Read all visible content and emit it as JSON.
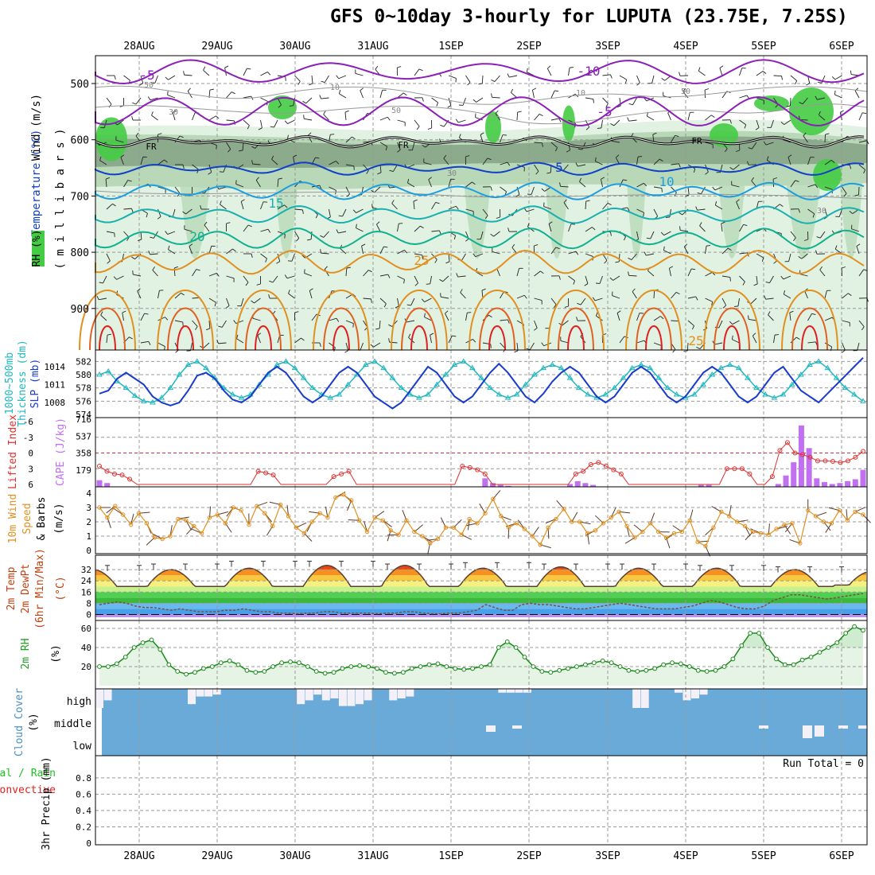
{
  "title": "GFS 0~10day 3-hourly for LUPUTA (23.75E, 7.25S)",
  "days": [
    "28AUG",
    "29AUG",
    "30AUG",
    "31AUG",
    "1SEP",
    "2SEP",
    "3SEP",
    "4SEP",
    "5SEP",
    "6SEP"
  ],
  "colors": {
    "purple": "#8b1fb8",
    "blue": "#1040c8",
    "lightblue": "#1e9ee0",
    "teal": "#18b0b0",
    "green": "#10b090",
    "orange": "#e09020",
    "dorange": "#e06020",
    "red": "#e02020",
    "rh_light": "#e2f2e2",
    "rh_mid": "#b8d8b8",
    "rh_dark": "#8caa8c",
    "rh_bright": "#44cc44",
    "cape": "#c070f0",
    "li": "#e03030",
    "slp": "#1a3ccc",
    "thick": "#20b8c0",
    "wind10": "#e09020",
    "cloud": "#6aaad8",
    "cloud_white": "#f4f0f8"
  },
  "panels": {
    "upper": {
      "ylabel_wind": "Wind (m/s)",
      "ylabel_temp": "Temperature (°C)",
      "ylabel_rh": "RH (%)",
      "ylabel_mb": "( m i l l i b a r s )",
      "pressure_ticks": [
        "500",
        "600",
        "700",
        "800",
        "900"
      ],
      "temp_labels": [
        "-5",
        "-10",
        "-5",
        "FR",
        "FR",
        "FR",
        "5",
        "10",
        "15",
        "20",
        "25",
        "25"
      ],
      "rh_labels": [
        "50",
        "30",
        "10",
        "50",
        "10",
        "30",
        "50",
        "30"
      ]
    },
    "slp": {
      "ylabel_thick": "Thickness (dm)",
      "ylabel_1000": "1000~500mb",
      "ylabel_slp": "SLP (mb)",
      "left_ticks": [
        "582",
        "580",
        "578",
        "576",
        "574"
      ],
      "right_ticks": [
        "1014",
        "1011",
        "1008"
      ]
    },
    "cape": {
      "ylabel_li": "Lifted Index",
      "ylabel_cape": "CAPE (J/kg)",
      "left_ticks": [
        "-6",
        "-3",
        "0",
        "3",
        "6"
      ],
      "right_ticks": [
        "716",
        "537",
        "358",
        "179"
      ]
    },
    "wind10": {
      "ylabel_a": "10m Wind",
      "ylabel_b": "Speed",
      "ylabel_c": "& Barbs",
      "ylabel_unit": "(m/s)",
      "ticks": [
        "4",
        "3",
        "2",
        "1",
        "0"
      ]
    },
    "temp2m": {
      "ylabel_a": "2m Temp",
      "ylabel_b": "2m DewPt",
      "ylabel_c": "(6hr Min/Max)",
      "ylabel_unit": "(°C)",
      "ticks": [
        "32",
        "24",
        "16",
        "8",
        "0"
      ]
    },
    "rh2m": {
      "ylabel_a": "2m RH",
      "ylabel_unit": "(%)",
      "ticks": [
        "60",
        "40",
        "20"
      ]
    },
    "cloud": {
      "ylabel_a": "Cloud Cover",
      "ylabel_unit": "(%)",
      "levels": [
        "high",
        "middle",
        "low"
      ]
    },
    "precip": {
      "ylabel_a": "Total / Rain",
      "ylabel_b": "Convective",
      "ylabel_c": "3hr Precip (mm)",
      "ticks": [
        "0.8",
        "0.6",
        "0.4",
        "0.2",
        "0"
      ],
      "run_total": "Run Total = 0"
    }
  },
  "chart_data": [
    {
      "type": "line",
      "panel": "1000-500mb thickness",
      "ylabel": "Thickness (dm)",
      "ylim": [
        574,
        583
      ],
      "values": [
        580,
        580.5,
        579,
        578,
        576.8,
        576,
        575.8,
        576.5,
        578,
        580,
        581.5,
        582,
        581,
        579.5,
        578,
        577,
        576.5,
        577,
        578.5,
        580,
        581.5,
        582,
        581,
        579.5,
        578,
        577,
        576.5,
        577,
        578.5,
        580,
        581.5,
        582,
        581,
        579.5,
        578,
        577,
        576.5,
        577,
        578.5,
        580,
        581.5,
        582,
        581,
        579.5,
        578,
        577,
        576.5,
        577,
        578.5,
        580,
        581,
        581.5,
        581,
        579.5,
        578,
        577,
        576.5,
        577,
        578,
        579.5,
        581,
        581.5,
        581,
        579.5,
        578,
        577,
        576.5,
        577,
        578.5,
        580,
        581,
        581.5,
        581,
        579.5,
        578,
        577,
        576.5,
        577,
        578.5,
        580,
        581.5,
        582,
        581,
        579.5,
        578,
        577,
        576
      ]
    },
    {
      "type": "line",
      "panel": "SLP",
      "ylabel": "SLP (mb)",
      "ylim": [
        1006,
        1016
      ],
      "values": [
        1009.5,
        1010,
        1012,
        1013,
        1012,
        1011,
        1009,
        1008,
        1007.5,
        1008,
        1010,
        1012.5,
        1013,
        1012,
        1010,
        1008.5,
        1008,
        1009,
        1011,
        1013,
        1014,
        1013,
        1011,
        1009,
        1008,
        1009,
        1011,
        1013,
        1014,
        1013,
        1011,
        1009,
        1008,
        1007,
        1008,
        1010,
        1012,
        1014,
        1013,
        1011,
        1009,
        1008,
        1009,
        1011,
        1013,
        1014.5,
        1013,
        1011,
        1009,
        1008,
        1009.5,
        1011.5,
        1013,
        1014,
        1013,
        1011,
        1009,
        1008,
        1009,
        1011,
        1013,
        1014,
        1013,
        1011,
        1009,
        1008,
        1009,
        1011,
        1013,
        1014,
        1013,
        1011,
        1009,
        1008,
        1009,
        1011,
        1013,
        1014,
        1012,
        1010,
        1009,
        1008,
        1009.5,
        1011,
        1012.5,
        1014,
        1015.5
      ]
    },
    {
      "type": "bar",
      "panel": "CAPE",
      "ylabel": "CAPE (J/kg)",
      "ylim": [
        0,
        716
      ],
      "values": [
        70,
        40,
        0,
        0,
        0,
        0,
        0,
        0,
        0,
        0,
        0,
        0,
        0,
        0,
        0,
        0,
        0,
        0,
        0,
        0,
        0,
        0,
        0,
        0,
        0,
        0,
        0,
        0,
        0,
        0,
        0,
        0,
        0,
        0,
        0,
        0,
        0,
        0,
        0,
        0,
        0,
        0,
        0,
        0,
        0,
        0,
        0,
        0,
        0,
        0,
        90,
        40,
        20,
        10,
        0,
        0,
        0,
        0,
        0,
        0,
        0,
        30,
        60,
        40,
        20,
        0,
        0,
        0,
        0,
        0,
        0,
        0,
        0,
        0,
        0,
        0,
        0,
        0,
        20,
        20,
        0,
        0,
        0,
        0,
        0,
        0,
        0,
        0,
        30,
        120,
        260,
        650,
        410,
        90,
        50,
        30,
        40,
        60,
        80,
        180
      ]
    },
    {
      "type": "line",
      "panel": "Lifted Index",
      "ylabel": "Lifted Index",
      "ylim": [
        6,
        -6
      ],
      "values": [
        2.5,
        3.5,
        4,
        4.2,
        5,
        6,
        6,
        6,
        6,
        6,
        6,
        6,
        6,
        6,
        6,
        6,
        6,
        6,
        6,
        6,
        6,
        3.5,
        3.8,
        4.2,
        6,
        6,
        6,
        6,
        6,
        6,
        6,
        4.5,
        4,
        3.5,
        6,
        6,
        6,
        6,
        6,
        6,
        6,
        6,
        6,
        6,
        6,
        6,
        6,
        6,
        2.5,
        2.8,
        3.2,
        4,
        6,
        6,
        6,
        6,
        6,
        6,
        6,
        6,
        6,
        6,
        6,
        4,
        3.5,
        2.2,
        1.8,
        2.5,
        3.2,
        4,
        6,
        6,
        6,
        6,
        6,
        6,
        6,
        6,
        6,
        6,
        6,
        6,
        6,
        3,
        3,
        3,
        4,
        6,
        6,
        4.5,
        -0.5,
        -2,
        0,
        0.3,
        0.8,
        1.5,
        1.5,
        1.6,
        1.8,
        1.5,
        0.8,
        -0.3
      ]
    },
    {
      "type": "line",
      "panel": "10m wind speed",
      "ylabel": "Speed (m/s)",
      "ylim": [
        0,
        4
      ],
      "values": [
        3,
        2.3,
        3.1,
        2.5,
        1.8,
        2.6,
        1.9,
        0.9,
        0.8,
        1,
        2.2,
        2.1,
        1.7,
        1.2,
        2.3,
        2.5,
        1.9,
        3,
        2.8,
        1.8,
        3.1,
        2.6,
        1.7,
        3.2,
        2.4,
        1.6,
        1.2,
        2,
        2.6,
        2.3,
        3.7,
        3.9,
        3.5,
        2.1,
        1.3,
        2.3,
        2.1,
        1.4,
        1.1,
        2.1,
        1.3,
        1,
        0.5,
        0.8,
        1.6,
        1.6,
        1.1,
        2.2,
        1.9,
        2.6,
        3.6,
        2.4,
        1.6,
        1.9,
        1.5,
        1,
        0.4,
        1.6,
        2.2,
        2.9,
        2,
        2,
        1.2,
        1.4,
        1.9,
        2.3,
        2.7,
        1.7,
        0.9,
        1.3,
        1.9,
        1.3,
        0.9,
        1.2,
        1.3,
        2.1,
        0.6,
        0.3,
        1.6,
        2.7,
        2.4,
        2,
        1.7,
        1.3,
        1.2,
        1.1,
        1.5,
        1.8,
        1.9,
        0.5,
        2.8,
        2.4,
        2,
        1.9,
        2.8,
        2.1,
        2.7,
        2.5
      ]
    },
    {
      "type": "area",
      "panel": "2m temp",
      "ylabel": "2m Temp (°C)",
      "ylim": [
        -2,
        40
      ],
      "days_max": [
        32,
        33,
        35,
        35,
        33,
        34,
        33,
        33,
        32,
        31
      ],
      "days_min": [
        20,
        20,
        20,
        20,
        20,
        20,
        20,
        20,
        20,
        21
      ]
    },
    {
      "type": "line",
      "panel": "2m dewpoint",
      "ylabel": "2m DewPt (°C)",
      "ylim": [
        -2,
        40
      ],
      "values": [
        7,
        8,
        9,
        8,
        6,
        5,
        5,
        4,
        3,
        4,
        3,
        2,
        2,
        2,
        3,
        3,
        4,
        3,
        2,
        2,
        1,
        1,
        0.5,
        1,
        1,
        2,
        2,
        1,
        1,
        1,
        1,
        0.5,
        1,
        1,
        2,
        2,
        1,
        0.5,
        0.5,
        1,
        1,
        2,
        3,
        7,
        5,
        3,
        3,
        7,
        8,
        7,
        7,
        6,
        5,
        4,
        4,
        5,
        6,
        7,
        8,
        7,
        6,
        5,
        4,
        4,
        4,
        5,
        6,
        8,
        10,
        9,
        7,
        5,
        4,
        4,
        6,
        10,
        12,
        14,
        14,
        13,
        12,
        11,
        12,
        13,
        14,
        15
      ]
    },
    {
      "type": "area",
      "panel": "2m RH",
      "ylabel": "2m RH (%)",
      "ylim": [
        0,
        65
      ],
      "values": [
        20,
        20,
        23,
        30,
        40,
        45,
        48,
        38,
        22,
        15,
        12,
        14,
        18,
        20,
        24,
        26,
        22,
        16,
        14,
        15,
        20,
        24,
        25,
        24,
        20,
        15,
        13,
        14,
        18,
        20,
        21,
        20,
        18,
        14,
        13,
        14,
        18,
        20,
        22,
        23,
        20,
        18,
        17,
        18,
        20,
        22,
        40,
        46,
        40,
        30,
        20,
        15,
        14,
        16,
        18,
        20,
        22,
        24,
        26,
        24,
        20,
        16,
        15,
        16,
        18,
        22,
        24,
        23,
        20,
        16,
        15,
        16,
        20,
        28,
        42,
        55,
        55,
        40,
        28,
        22,
        22,
        27,
        30,
        35,
        40,
        45,
        55,
        62,
        58
      ]
    },
    {
      "type": "bar",
      "panel": "cloud cover high (%)",
      "ylim": [
        0,
        100
      ],
      "values": [
        100,
        60,
        0,
        0,
        0,
        0,
        0,
        0,
        0,
        0,
        0,
        80,
        40,
        40,
        30,
        0,
        0,
        0,
        0,
        0,
        0,
        0,
        0,
        0,
        80,
        60,
        30,
        60,
        50,
        90,
        90,
        80,
        60,
        0,
        0,
        60,
        50,
        40,
        0,
        0,
        0,
        0,
        0,
        0,
        0,
        0,
        0,
        0,
        20,
        20,
        20,
        20,
        0,
        0,
        0,
        0,
        0,
        0,
        0,
        0,
        0,
        0,
        0,
        0,
        100,
        100,
        0,
        0,
        0,
        20,
        60,
        50,
        30,
        0,
        0,
        0,
        0,
        0,
        0,
        0,
        0,
        0,
        0,
        0,
        0,
        0,
        0,
        0,
        0,
        0,
        0,
        0
      ]
    },
    {
      "type": "bar",
      "panel": "3hr precip",
      "ylabel": "3hr Precip (mm)",
      "ylim": [
        0,
        1
      ],
      "values": [
        0,
        0,
        0,
        0,
        0,
        0,
        0,
        0,
        0,
        0
      ]
    }
  ]
}
